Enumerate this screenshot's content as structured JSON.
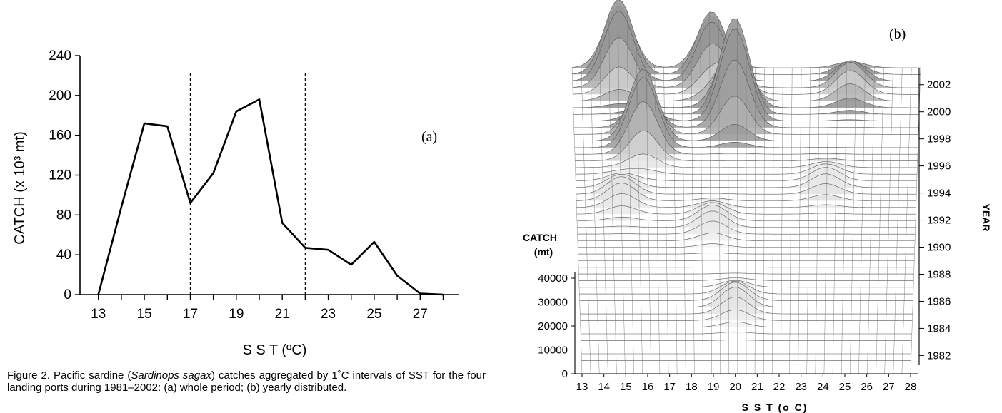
{
  "chart_data": [
    {
      "type": "line",
      "panel_label": "(a)",
      "xlabel": "S S T (ºC)",
      "ylabel": "CATCH (x 10³ mt)",
      "x_ticks": [
        13,
        15,
        17,
        19,
        21,
        23,
        25,
        27
      ],
      "y_ticks": [
        0,
        40,
        80,
        120,
        160,
        200,
        240
      ],
      "xlim": [
        12.2,
        28.7
      ],
      "ylim": [
        0,
        240
      ],
      "vlines": [
        17,
        22
      ],
      "series": [
        {
          "x": [
            13,
            14,
            15,
            16,
            17,
            18,
            19,
            20,
            21,
            22,
            23,
            24,
            25,
            26,
            27,
            28
          ],
          "values": [
            0,
            88,
            172,
            169,
            92,
            122,
            184,
            196,
            72,
            47,
            45,
            30,
            53,
            19,
            1,
            0
          ]
        }
      ]
    },
    {
      "type": "surface",
      "panel_label": "(b)",
      "xlabel": "S S T (o C)",
      "zlabel_line1": "CATCH",
      "zlabel_line2": "(mt)",
      "ylabel": "YEAR",
      "x_ticks": [
        13,
        14,
        15,
        16,
        17,
        18,
        19,
        20,
        21,
        22,
        23,
        24,
        25,
        26,
        27,
        28
      ],
      "z_ticks": [
        0,
        10000,
        20000,
        30000,
        40000
      ],
      "year_ticks": [
        1982,
        1984,
        1986,
        1988,
        1990,
        1992,
        1994,
        1996,
        1998,
        2000,
        2002
      ],
      "peaks": [
        {
          "sst": 20,
          "year": 1986,
          "catch": 9000
        },
        {
          "sst": 19,
          "year": 1992,
          "catch": 8000
        },
        {
          "sst": 15,
          "year": 1994,
          "catch": 9000
        },
        {
          "sst": 24,
          "year": 1995,
          "catch": 7000
        },
        {
          "sst": 16,
          "year": 1998,
          "catch": 38000
        },
        {
          "sst": 20,
          "year": 2000,
          "catch": 52000
        },
        {
          "sst": 15,
          "year": 2003,
          "catch": 42000
        },
        {
          "sst": 19,
          "year": 2003,
          "catch": 35000
        },
        {
          "sst": 25,
          "year": 2002,
          "catch": 14000
        }
      ]
    }
  ],
  "caption": {
    "prefix": "Figure 2.   Pacific sardine (",
    "species": "Sardinops sagax",
    "suffix": ") catches aggregated by 1˚C intervals of SST for the four landing ports during 1981–2002: (a) whole period; (b) yearly distributed."
  }
}
